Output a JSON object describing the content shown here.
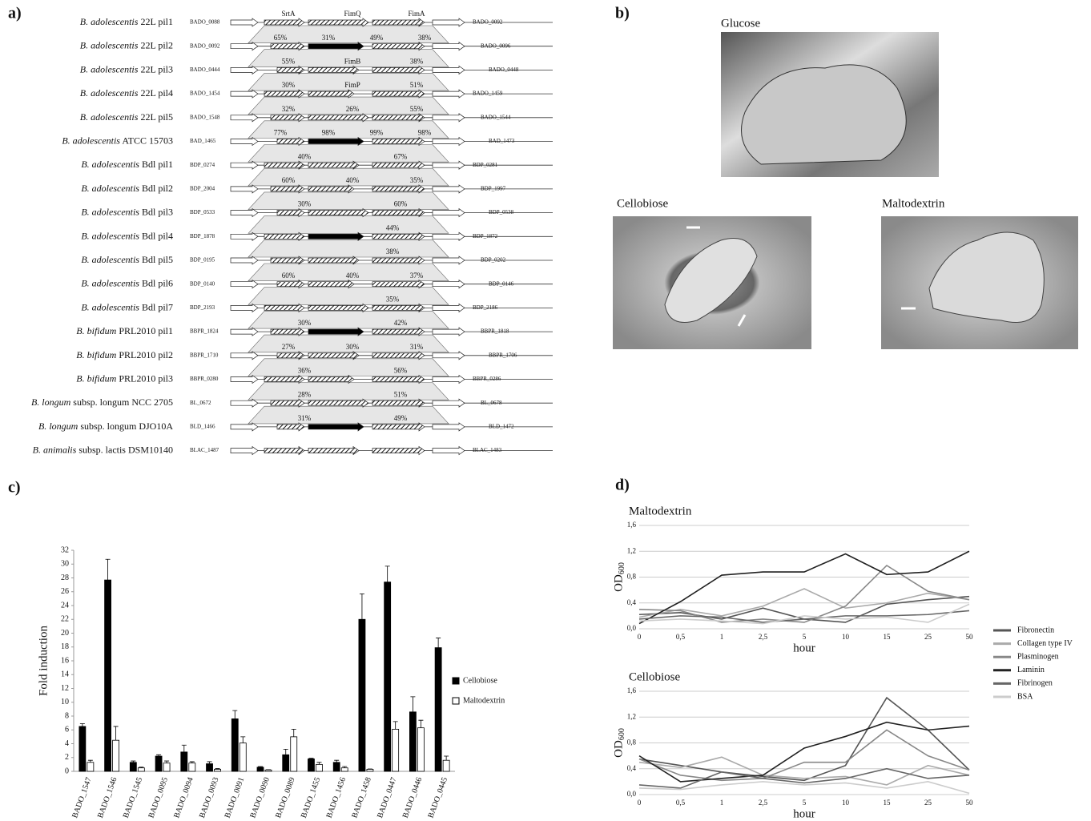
{
  "panel_labels": [
    "a)",
    "b)",
    "c)",
    "d)"
  ],
  "gene_clusters": {
    "rows": [
      {
        "strain": "B. adolescentis 22L pil1",
        "left": "BADO_0088",
        "right": "BADO_0092",
        "labels": [
          "SrtA",
          "FimQ",
          "FimA"
        ]
      },
      {
        "strain": "B. adolescentis 22L pil2",
        "left": "BADO_0092",
        "right": "BADO_0096",
        "labels": [
          "65%",
          "31%",
          "49%",
          "38%"
        ]
      },
      {
        "strain": "B. adolescentis 22L pil3",
        "left": "BADO_0444",
        "right": "BADO_0448",
        "labels": [
          "55%",
          "FimB",
          "38%"
        ]
      },
      {
        "strain": "B. adolescentis 22L pil4",
        "left": "BADO_1454",
        "right": "BADO_1459",
        "labels": [
          "30%",
          "FimP",
          "51%"
        ]
      },
      {
        "strain": "B. adolescentis 22L pil5",
        "left": "BADO_1548",
        "right": "BADO_1544",
        "labels": [
          "32%",
          "26%",
          "55%"
        ]
      },
      {
        "strain": "B. adolescentis ATCC 15703",
        "left": "BAD_1465",
        "right": "BAD_1473",
        "labels": [
          "77%",
          "98%",
          "99%",
          "98%"
        ]
      },
      {
        "strain": "B. adolescentis Bdl pil1",
        "left": "BDP_0274",
        "right": "BDP_0281",
        "labels": [
          "40%",
          "67%"
        ]
      },
      {
        "strain": "B. adolescentis Bdl pil2",
        "left": "BDP_2004",
        "right": "BDP_1997",
        "labels": [
          "60%",
          "40%",
          "35%"
        ]
      },
      {
        "strain": "B. adolescentis Bdl pil3",
        "left": "BDP_0533",
        "right": "BDP_0538",
        "labels": [
          "30%",
          "60%"
        ]
      },
      {
        "strain": "B. adolescentis Bdl pil4",
        "left": "BDP_1878",
        "right": "BDP_1872",
        "labels": [
          "44%"
        ]
      },
      {
        "strain": "B. adolescentis Bdl pil5",
        "left": "BDP_0195",
        "right": "BDP_0202",
        "labels": [
          "38%"
        ]
      },
      {
        "strain": "B. adolescentis Bdl pil6",
        "left": "BDP_0140",
        "right": "BDP_0146",
        "labels": [
          "60%",
          "40%",
          "37%"
        ]
      },
      {
        "strain": "B. adolescentis Bdl pil7",
        "left": "BDP_2193",
        "right": "BDP_2186",
        "labels": [
          "35%"
        ]
      },
      {
        "strain": "B. bifidum PRL2010 pil1",
        "left": "BBPR_1824",
        "right": "BBPR_1818",
        "labels": [
          "30%",
          "42%"
        ]
      },
      {
        "strain": "B. bifidum PRL2010 pil2",
        "left": "BBPR_1710",
        "right": "BBPR_1706",
        "labels": [
          "27%",
          "30%",
          "31%"
        ]
      },
      {
        "strain": "B. bifidum PRL2010 pil3",
        "left": "BBPR_0280",
        "right": "BBPR_0286",
        "labels": [
          "36%",
          "56%"
        ]
      },
      {
        "strain": "B. longum subsp. longum NCC 2705",
        "left": "BL_0672",
        "right": "BL_0678",
        "labels": [
          "28%",
          "51%"
        ]
      },
      {
        "strain": "B. longum subsp. longum DJO10A",
        "left": "BLD_1466",
        "right": "BLD_1472",
        "labels": [
          "31%",
          "49%"
        ]
      },
      {
        "strain": "B. animalis subsp. lactis DSM10140",
        "left": "BLAC_1487",
        "right": "BLAC_1483",
        "labels": []
      }
    ]
  },
  "micrographs": {
    "titles": [
      "Glucose",
      "Cellobiose",
      "Maltodextrin"
    ]
  },
  "chart_data": [
    {
      "type": "bar",
      "ylabel": "Fold induction",
      "categories": [
        "BADO_1547",
        "BADO_1546",
        "BADO_1545",
        "BADO_0095",
        "BADO_0094",
        "BADO_0093",
        "BADO_0091",
        "BADO_0090",
        "BADO_0089",
        "BADO_1455",
        "BADO_1456",
        "BADO_1458",
        "BADO_0447",
        "BADO_0446",
        "BADO_0445"
      ],
      "series": [
        {
          "name": "Cellobiose",
          "color": "#000000",
          "values": [
            6.5,
            27.7,
            1.3,
            2.2,
            2.8,
            1.1,
            7.6,
            0.6,
            2.4,
            1.8,
            1.3,
            22,
            27.4,
            8.6,
            17.9
          ],
          "errors": [
            0.4,
            3,
            0.2,
            0.2,
            1,
            0.3,
            1.2,
            0.1,
            0.8,
            0.1,
            0.3,
            3.7,
            2.3,
            2.2,
            1.4
          ]
        },
        {
          "name": "Maltodextrin",
          "color": "#ffffff",
          "values": [
            1.3,
            4.5,
            0.5,
            1.2,
            1.2,
            0.3,
            4.1,
            0.2,
            5.0,
            1.0,
            0.5,
            0.3,
            6.1,
            6.3,
            1.6
          ],
          "errors": [
            0.3,
            2,
            0.1,
            0.3,
            0.2,
            0.1,
            0.9,
            0.05,
            1.1,
            0.3,
            0.2,
            0.05,
            1.1,
            1.1,
            0.6
          ]
        }
      ],
      "ylim": [
        0,
        32
      ],
      "yticks": [
        0,
        2,
        4,
        6,
        8,
        10,
        12,
        14,
        16,
        18,
        20,
        22,
        24,
        26,
        28,
        30,
        32
      ],
      "grid": false,
      "legend": "right"
    },
    {
      "type": "line",
      "title": "Maltodextrin",
      "ylabel": "OD",
      "ylabel_subscript": "600",
      "xlabel": "hour",
      "categories": [
        "0",
        "0,5",
        "1",
        "2,5",
        "5",
        "10",
        "15",
        "25",
        "50"
      ],
      "series": [
        {
          "name": "Fibronectin",
          "color": "#555555",
          "values": [
            0.22,
            0.25,
            0.15,
            0.32,
            0.15,
            0.1,
            0.38,
            0.45,
            0.5
          ]
        },
        {
          "name": "Collagen type IV",
          "color": "#aaaaaa",
          "values": [
            0.18,
            0.3,
            0.2,
            0.35,
            0.62,
            0.32,
            0.4,
            0.55,
            0.45
          ]
        },
        {
          "name": "Plasminogen",
          "color": "#888888",
          "values": [
            0.3,
            0.28,
            0.1,
            0.15,
            0.1,
            0.35,
            0.98,
            0.58,
            0.45
          ]
        },
        {
          "name": "Laminin",
          "color": "#222222",
          "values": [
            0.08,
            0.42,
            0.83,
            0.88,
            0.88,
            1.16,
            0.84,
            0.88,
            1.2
          ]
        },
        {
          "name": "Fibrinogen",
          "color": "#666666",
          "values": [
            0.15,
            0.2,
            0.18,
            0.1,
            0.15,
            0.2,
            0.2,
            0.22,
            0.28
          ]
        },
        {
          "name": "BSA",
          "color": "#cccccc",
          "values": [
            0.12,
            0.15,
            0.12,
            0.08,
            0.2,
            0.15,
            0.18,
            0.1,
            0.38
          ]
        }
      ],
      "ylim": [
        0,
        1.6
      ],
      "yticks": [
        {
          "value": 0,
          "label": "0,0"
        },
        {
          "value": 0.4,
          "label": "0,4"
        },
        {
          "value": 0.8,
          "label": "0,8"
        },
        {
          "value": 1.2,
          "label": "1,2"
        },
        {
          "value": 1.6,
          "label": "1,6"
        }
      ],
      "grid": true,
      "legend": "right"
    },
    {
      "type": "line",
      "title": "Cellobiose",
      "ylabel": "OD",
      "ylabel_subscript": "600",
      "xlabel": "hour",
      "categories": [
        "0",
        "0,5",
        "1",
        "2,5",
        "5",
        "10",
        "15",
        "25",
        "50"
      ],
      "series": [
        {
          "color": "#555555",
          "values": [
            0.55,
            0.45,
            0.35,
            0.28,
            0.22,
            0.45,
            1.5,
            1.0,
            0.38
          ]
        },
        {
          "color": "#aaaaaa",
          "values": [
            0.5,
            0.42,
            0.58,
            0.3,
            0.25,
            0.28,
            0.15,
            0.45,
            0.3
          ]
        },
        {
          "color": "#888888",
          "values": [
            0.55,
            0.3,
            0.22,
            0.25,
            0.5,
            0.5,
            1.0,
            0.6,
            0.38
          ]
        },
        {
          "color": "#222222",
          "values": [
            0.6,
            0.2,
            0.25,
            0.3,
            0.72,
            0.9,
            1.12,
            1.0,
            1.06
          ]
        },
        {
          "color": "#666666",
          "values": [
            0.15,
            0.1,
            0.35,
            0.25,
            0.18,
            0.25,
            0.4,
            0.25,
            0.3
          ]
        },
        {
          "color": "#cccccc",
          "values": [
            0.1,
            0.08,
            0.15,
            0.2,
            0.15,
            0.18,
            0.1,
            0.2,
            0.02
          ]
        }
      ],
      "ylim": [
        0,
        1.6
      ],
      "yticks": [
        {
          "value": 0,
          "label": "0,0"
        },
        {
          "value": 0.4,
          "label": "0,4"
        },
        {
          "value": 0.8,
          "label": "0,8"
        },
        {
          "value": 1.2,
          "label": "1,2"
        },
        {
          "value": 1.6,
          "label": "1,6"
        }
      ],
      "grid": true
    }
  ]
}
